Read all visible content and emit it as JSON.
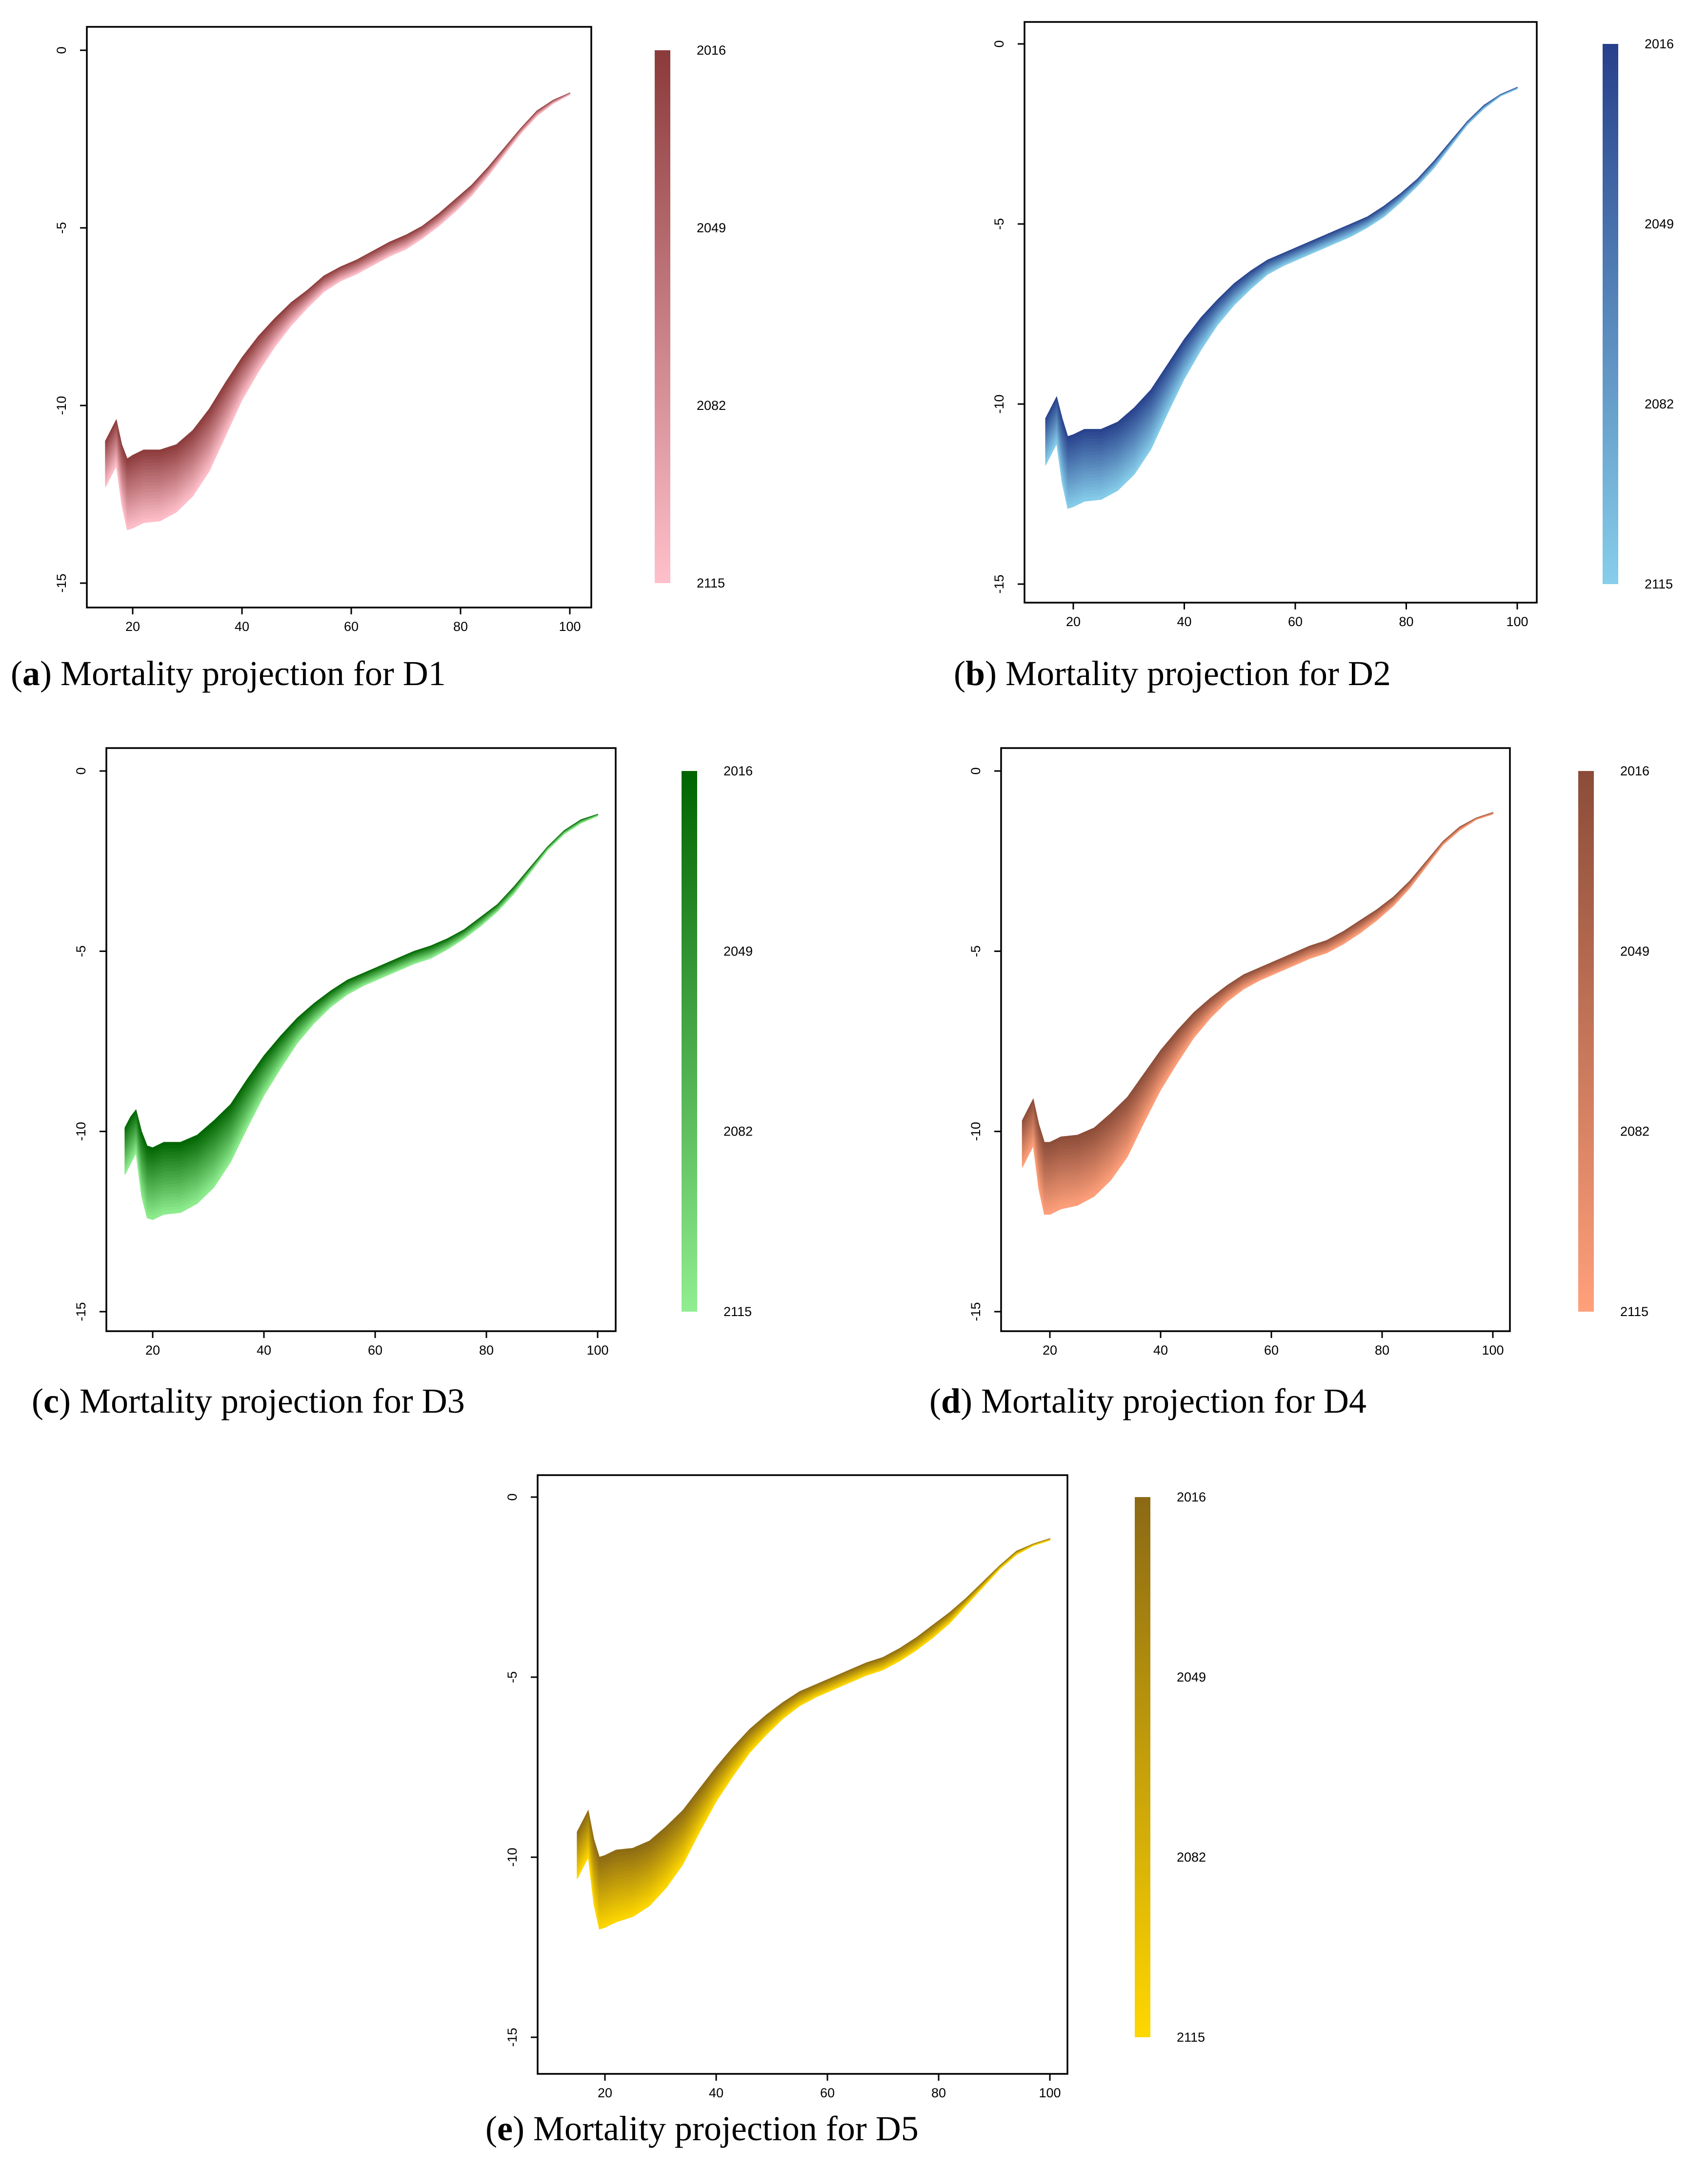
{
  "figure": {
    "common": {
      "x_ticks": [
        20,
        40,
        60,
        80,
        100
      ],
      "y_ticks": [
        0,
        -5,
        -10,
        -15
      ],
      "xlim": [
        14,
        104
      ],
      "ylim": [
        -15.6,
        0.8
      ],
      "legend_labels": [
        "2016",
        "2049",
        "2082",
        "2115"
      ]
    }
  },
  "chart_data": [
    {
      "type": "area",
      "id": "a",
      "title": "Mortality projection for D1",
      "caption_letter": "a",
      "caption_text": "Mortality projection for D1",
      "legend_labels": [
        "2016",
        "2049",
        "2082",
        "2115"
      ],
      "color_start": "#8B3A3A",
      "color_end": "#FFC0CB",
      "x_ticks": [
        20,
        40,
        60,
        80,
        100
      ],
      "y_ticks": [
        0,
        -5,
        -10,
        -15
      ],
      "x": [
        15,
        16,
        17,
        18,
        19,
        20,
        22,
        25,
        28,
        31,
        34,
        37,
        40,
        43,
        46,
        49,
        52,
        55,
        58,
        61,
        64,
        67,
        70,
        73,
        76,
        79,
        82,
        85,
        88,
        91,
        94,
        97,
        100
      ],
      "upper_2016": [
        -11.0,
        -10.7,
        -10.4,
        -11.1,
        -11.5,
        -11.4,
        -11.25,
        -11.25,
        -11.1,
        -10.7,
        -10.1,
        -9.35,
        -8.65,
        -8.05,
        -7.55,
        -7.1,
        -6.75,
        -6.35,
        -6.1,
        -5.9,
        -5.65,
        -5.4,
        -5.2,
        -4.95,
        -4.6,
        -4.2,
        -3.8,
        -3.3,
        -2.75,
        -2.2,
        -1.7,
        -1.4,
        -1.2
      ],
      "lower_2115": [
        -12.3,
        -12.0,
        -11.7,
        -12.8,
        -13.5,
        -13.45,
        -13.3,
        -13.25,
        -13.0,
        -12.55,
        -11.85,
        -10.85,
        -9.85,
        -9.05,
        -8.35,
        -7.75,
        -7.25,
        -6.8,
        -6.5,
        -6.3,
        -6.05,
        -5.8,
        -5.6,
        -5.3,
        -4.95,
        -4.55,
        -4.1,
        -3.55,
        -2.95,
        -2.35,
        -1.85,
        -1.5,
        -1.25
      ]
    },
    {
      "type": "area",
      "id": "b",
      "title": "Mortality projection for D2",
      "caption_letter": "b",
      "caption_text": "Mortality projection for D2",
      "legend_labels": [
        "2016",
        "2049",
        "2082",
        "2115"
      ],
      "color_start": "#27408B",
      "color_end": "#87CEEB",
      "x_ticks": [
        20,
        40,
        60,
        80,
        100
      ],
      "y_ticks": [
        0,
        -5,
        -10,
        -15
      ],
      "x": [
        15,
        16,
        17,
        18,
        19,
        20,
        22,
        25,
        28,
        31,
        34,
        37,
        40,
        43,
        46,
        49,
        52,
        55,
        58,
        61,
        64,
        67,
        70,
        73,
        76,
        79,
        82,
        85,
        88,
        91,
        94,
        97,
        100
      ],
      "upper_2016": [
        -10.4,
        -10.1,
        -9.8,
        -10.4,
        -10.9,
        -10.85,
        -10.7,
        -10.7,
        -10.5,
        -10.1,
        -9.6,
        -8.9,
        -8.2,
        -7.6,
        -7.1,
        -6.65,
        -6.3,
        -6.0,
        -5.8,
        -5.6,
        -5.4,
        -5.2,
        -5.0,
        -4.8,
        -4.5,
        -4.15,
        -3.75,
        -3.25,
        -2.7,
        -2.15,
        -1.7,
        -1.4,
        -1.2
      ],
      "lower_2115": [
        -11.7,
        -11.4,
        -11.1,
        -12.2,
        -12.9,
        -12.85,
        -12.7,
        -12.65,
        -12.4,
        -11.95,
        -11.25,
        -10.25,
        -9.3,
        -8.5,
        -7.8,
        -7.25,
        -6.8,
        -6.4,
        -6.15,
        -5.95,
        -5.75,
        -5.55,
        -5.35,
        -5.1,
        -4.8,
        -4.4,
        -3.95,
        -3.45,
        -2.85,
        -2.25,
        -1.8,
        -1.45,
        -1.25
      ]
    },
    {
      "type": "area",
      "id": "c",
      "title": "Mortality projection for D3",
      "caption_letter": "c",
      "caption_text": "Mortality projection for D3",
      "legend_labels": [
        "2016",
        "2049",
        "2082",
        "2115"
      ],
      "color_start": "#006400",
      "color_end": "#90EE90",
      "x_ticks": [
        20,
        40,
        60,
        80,
        100
      ],
      "y_ticks": [
        0,
        -5,
        -10,
        -15
      ],
      "x": [
        15,
        16,
        17,
        18,
        19,
        20,
        22,
        25,
        28,
        31,
        34,
        37,
        40,
        43,
        46,
        49,
        52,
        55,
        58,
        61,
        64,
        67,
        70,
        73,
        76,
        79,
        82,
        85,
        88,
        91,
        94,
        97,
        100
      ],
      "upper_2016": [
        -9.9,
        -9.6,
        -9.4,
        -10.0,
        -10.4,
        -10.45,
        -10.3,
        -10.3,
        -10.1,
        -9.7,
        -9.25,
        -8.55,
        -7.9,
        -7.35,
        -6.85,
        -6.45,
        -6.1,
        -5.8,
        -5.6,
        -5.4,
        -5.2,
        -5.0,
        -4.85,
        -4.65,
        -4.4,
        -4.05,
        -3.7,
        -3.2,
        -2.65,
        -2.1,
        -1.65,
        -1.35,
        -1.2
      ],
      "lower_2115": [
        -11.2,
        -10.9,
        -10.6,
        -11.8,
        -12.4,
        -12.45,
        -12.3,
        -12.25,
        -12.0,
        -11.55,
        -10.85,
        -9.9,
        -9.0,
        -8.25,
        -7.55,
        -7.0,
        -6.55,
        -6.2,
        -5.95,
        -5.75,
        -5.55,
        -5.35,
        -5.2,
        -4.95,
        -4.65,
        -4.3,
        -3.9,
        -3.4,
        -2.8,
        -2.2,
        -1.75,
        -1.45,
        -1.25
      ]
    },
    {
      "type": "area",
      "id": "d",
      "title": "Mortality projection for D4",
      "caption_letter": "d",
      "caption_text": "Mortality projection for D4",
      "legend_labels": [
        "2016",
        "2049",
        "2082",
        "2115"
      ],
      "color_start": "#8B4C39",
      "color_end": "#FFA07A",
      "x_ticks": [
        20,
        40,
        60,
        80,
        100
      ],
      "y_ticks": [
        0,
        -5,
        -10,
        -15
      ],
      "x": [
        15,
        16,
        17,
        18,
        19,
        20,
        22,
        25,
        28,
        31,
        34,
        37,
        40,
        43,
        46,
        49,
        52,
        55,
        58,
        61,
        64,
        67,
        70,
        73,
        76,
        79,
        82,
        85,
        88,
        91,
        94,
        97,
        100
      ],
      "upper_2016": [
        -9.7,
        -9.4,
        -9.1,
        -9.8,
        -10.3,
        -10.3,
        -10.15,
        -10.1,
        -9.9,
        -9.5,
        -9.05,
        -8.4,
        -7.75,
        -7.2,
        -6.7,
        -6.3,
        -5.95,
        -5.65,
        -5.45,
        -5.25,
        -5.05,
        -4.85,
        -4.7,
        -4.45,
        -4.15,
        -3.85,
        -3.5,
        -3.05,
        -2.5,
        -1.95,
        -1.55,
        -1.3,
        -1.15
      ],
      "lower_2115": [
        -11.0,
        -10.7,
        -10.4,
        -11.6,
        -12.3,
        -12.3,
        -12.15,
        -12.05,
        -11.8,
        -11.35,
        -10.7,
        -9.75,
        -8.85,
        -8.1,
        -7.4,
        -6.85,
        -6.4,
        -6.05,
        -5.8,
        -5.6,
        -5.4,
        -5.2,
        -5.05,
        -4.8,
        -4.5,
        -4.15,
        -3.75,
        -3.25,
        -2.65,
        -2.05,
        -1.65,
        -1.35,
        -1.2
      ]
    },
    {
      "type": "area",
      "id": "e",
      "title": "Mortality projection for D5",
      "caption_letter": "e",
      "caption_text": "Mortality projection for D5",
      "legend_labels": [
        "2016",
        "2049",
        "2082",
        "2115"
      ],
      "color_start": "#8B6914",
      "color_end": "#FFD700",
      "x_ticks": [
        20,
        40,
        60,
        80,
        100
      ],
      "y_ticks": [
        0,
        -5,
        -10,
        -15
      ],
      "x": [
        15,
        16,
        17,
        18,
        19,
        20,
        22,
        25,
        28,
        31,
        34,
        37,
        40,
        43,
        46,
        49,
        52,
        55,
        58,
        61,
        64,
        67,
        70,
        73,
        76,
        79,
        82,
        85,
        88,
        91,
        94,
        97,
        100
      ],
      "upper_2016": [
        -9.3,
        -9.0,
        -8.7,
        -9.5,
        -10.0,
        -9.95,
        -9.8,
        -9.75,
        -9.55,
        -9.15,
        -8.7,
        -8.1,
        -7.5,
        -6.95,
        -6.45,
        -6.05,
        -5.7,
        -5.4,
        -5.2,
        -5.0,
        -4.8,
        -4.6,
        -4.45,
        -4.2,
        -3.9,
        -3.55,
        -3.2,
        -2.8,
        -2.35,
        -1.9,
        -1.5,
        -1.3,
        -1.15
      ],
      "lower_2115": [
        -10.6,
        -10.3,
        -10.0,
        -11.3,
        -12.0,
        -11.95,
        -11.8,
        -11.65,
        -11.35,
        -10.85,
        -10.2,
        -9.3,
        -8.45,
        -7.75,
        -7.1,
        -6.6,
        -6.15,
        -5.8,
        -5.55,
        -5.35,
        -5.15,
        -4.95,
        -4.8,
        -4.55,
        -4.25,
        -3.9,
        -3.5,
        -3.0,
        -2.5,
        -2.0,
        -1.6,
        -1.35,
        -1.2
      ]
    }
  ]
}
